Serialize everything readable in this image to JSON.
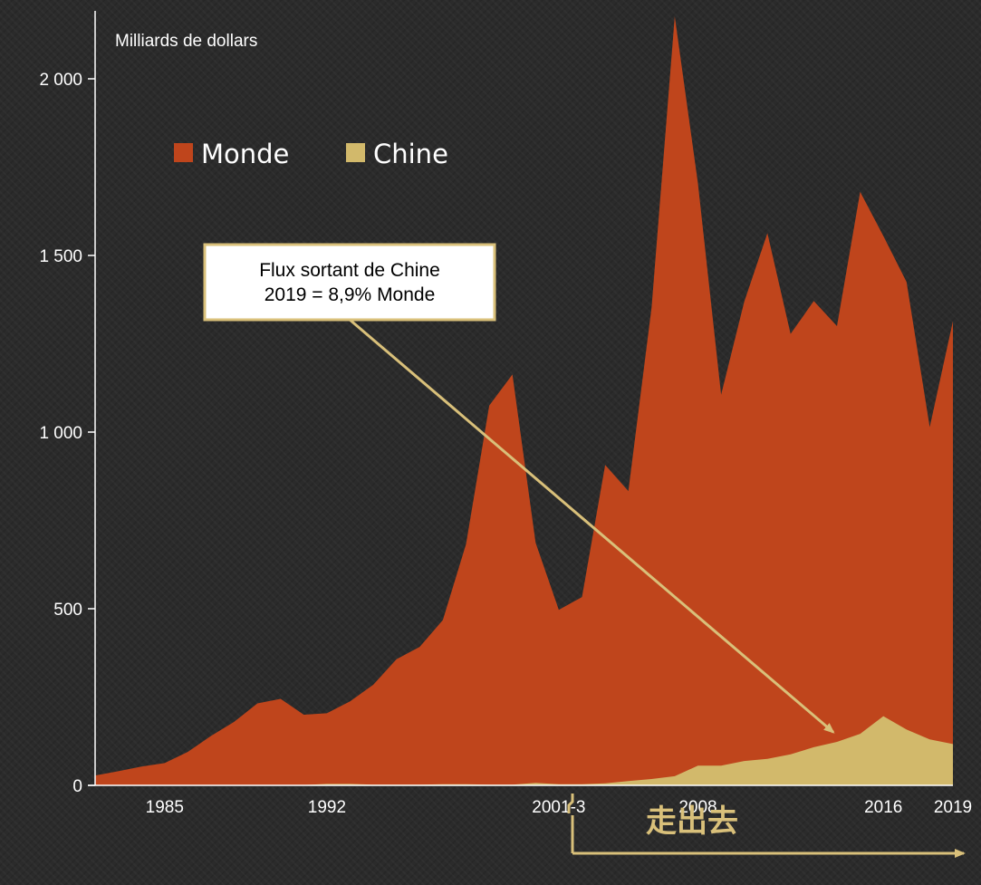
{
  "chart_data": {
    "type": "area",
    "ylabel": "Milliards de dollars",
    "ylim": [
      0,
      2200
    ],
    "yticks": [
      0,
      500,
      1000,
      1500,
      2000
    ],
    "ytick_labels": [
      "0",
      "500",
      "1 000",
      "1 500",
      "2 000"
    ],
    "xlim": [
      1982,
      2019
    ],
    "xtick_positions": [
      1985,
      1992,
      2002,
      2008,
      2016,
      2019
    ],
    "xtick_labels": [
      "1985",
      "1992",
      "2001-3",
      "2008",
      "2016",
      "2019"
    ],
    "x": [
      1982,
      1983,
      1984,
      1985,
      1986,
      1987,
      1988,
      1989,
      1990,
      1991,
      1992,
      1993,
      1994,
      1995,
      1996,
      1997,
      1998,
      1999,
      2000,
      2001,
      2002,
      2003,
      2004,
      2005,
      2006,
      2007,
      2008,
      2009,
      2010,
      2011,
      2012,
      2013,
      2014,
      2015,
      2016,
      2017,
      2018,
      2019
    ],
    "series": [
      {
        "name": "Monde",
        "color": "#bf451c",
        "values": [
          28,
          40,
          53,
          63,
          95,
          140,
          180,
          232,
          245,
          200,
          204,
          238,
          285,
          357,
          392,
          468,
          683,
          1075,
          1163,
          687,
          497,
          533,
          907,
          833,
          1352,
          2177,
          1704,
          1106,
          1369,
          1563,
          1278,
          1371,
          1300,
          1680,
          1555,
          1425,
          1014,
          1314
        ]
      },
      {
        "name": "Chine",
        "color": "#d2b96b",
        "values": [
          0,
          0,
          0,
          1,
          1,
          1,
          1,
          1,
          1,
          1,
          4,
          4,
          2,
          2,
          2,
          3,
          3,
          2,
          2,
          7,
          3,
          3,
          6,
          12,
          18,
          26,
          56,
          56,
          69,
          75,
          88,
          108,
          123,
          146,
          196,
          158,
          130,
          117
        ]
      }
    ],
    "legend": {
      "position": "top-left",
      "items": [
        "Monde",
        "Chine"
      ]
    },
    "grid": false,
    "annotations": {
      "callout": [
        "Flux sortant de Chine",
        "2019 = 8,9% Monde"
      ],
      "arrow_target_x": 2014,
      "arrow_target_y": 140,
      "period_label": "走出去",
      "period_start_x": 2004
    },
    "colors": {
      "axis": "#ffffff",
      "arrow": "#d9c07a",
      "callout_bg": "#ffffff",
      "callout_border": "#d9c07a"
    }
  }
}
